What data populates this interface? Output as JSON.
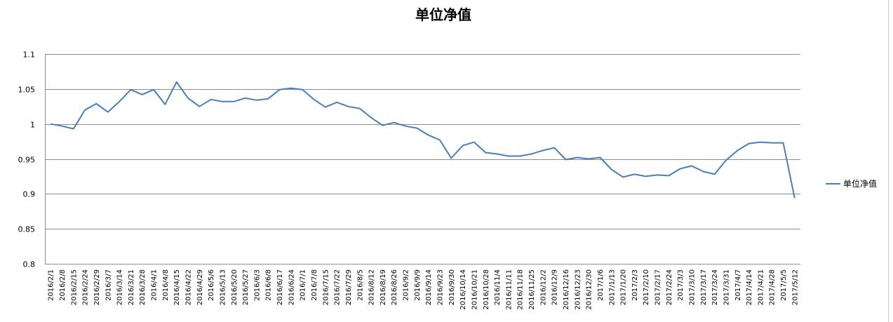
{
  "chart_data": {
    "type": "line",
    "title": "单位净值",
    "xlabel": "",
    "ylabel": "",
    "ylim": [
      0.8,
      1.1
    ],
    "y_ticks": [
      "1.1",
      "1.05",
      "1",
      "0.95",
      "0.9",
      "0.85",
      "0.8"
    ],
    "y_tick_values": [
      1.1,
      1.05,
      1.0,
      0.95,
      0.9,
      0.85,
      0.8
    ],
    "grid": true,
    "legend_position": "right",
    "categories": [
      "2016/2/1",
      "2016/2/8",
      "2016/2/15",
      "2016/2/24",
      "2016/2/29",
      "2016/3/7",
      "2016/3/14",
      "2016/3/21",
      "2016/3/28",
      "2016/4/1",
      "2016/4/8",
      "2016/4/15",
      "2016/4/22",
      "2016/4/29",
      "2016/5/6",
      "2016/5/13",
      "2016/5/20",
      "2016/5/27",
      "2016/6/3",
      "2016/6/8",
      "2016/6/17",
      "2016/6/24",
      "2016/7/1",
      "2016/7/8",
      "2016/7/15",
      "2016/7/22",
      "2016/7/29",
      "2016/8/5",
      "2016/8/12",
      "2016/8/19",
      "2016/8/26",
      "2016/9/2",
      "2016/9/9",
      "2016/9/14",
      "2016/9/23",
      "2016/9/30",
      "2016/10/14",
      "2016/10/21",
      "2016/10/28",
      "2016/11/4",
      "2016/11/11",
      "2016/11/18",
      "2016/11/25",
      "2016/12/2",
      "2016/12/9",
      "2016/12/16",
      "2016/12/23",
      "2016/12/30",
      "2017/1/6",
      "2017/1/13",
      "2017/1/20",
      "2017/2/3",
      "2017/2/10",
      "2017/2/17",
      "2017/2/24",
      "2017/3/3",
      "2017/3/10",
      "2017/3/17",
      "2017/3/24",
      "2017/3/31",
      "2017/4/7",
      "2017/4/14",
      "2017/4/21",
      "2017/4/28",
      "2017/5/5",
      "2017/5/12"
    ],
    "series": [
      {
        "name": "单位净值",
        "color": "#4a7ebb",
        "values": [
          1.0,
          0.997,
          0.993,
          1.02,
          1.029,
          1.017,
          1.032,
          1.049,
          1.042,
          1.049,
          1.028,
          1.06,
          1.037,
          1.025,
          1.035,
          1.032,
          1.032,
          1.037,
          1.034,
          1.036,
          1.049,
          1.051,
          1.049,
          1.035,
          1.024,
          1.031,
          1.025,
          1.022,
          1.009,
          0.998,
          1.002,
          0.997,
          0.994,
          0.984,
          0.977,
          0.951,
          0.969,
          0.974,
          0.959,
          0.957,
          0.954,
          0.954,
          0.957,
          0.962,
          0.966,
          0.949,
          0.952,
          0.95,
          0.952,
          0.935,
          0.924,
          0.928,
          0.925,
          0.927,
          0.926,
          0.936,
          0.94,
          0.932,
          0.928,
          0.948,
          0.962,
          0.972,
          0.974,
          0.973,
          0.973,
          0.894
        ]
      }
    ]
  }
}
